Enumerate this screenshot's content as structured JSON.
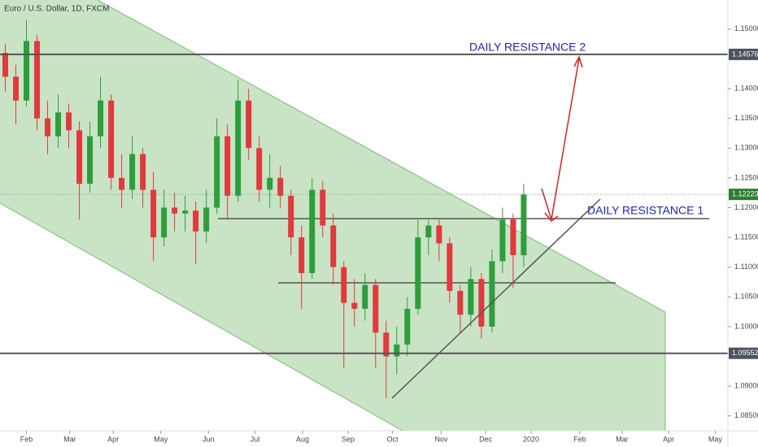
{
  "chart_data": {
    "type": "candlestick",
    "title": "Euro / U.S. Dollar, 1D, FXCM",
    "up_color": "#2e9d3c",
    "down_color": "#e0393e",
    "open": [
      1.146,
      1.142,
      1.138,
      1.148,
      1.135,
      1.132,
      1.136,
      1.133,
      1.124,
      1.132,
      1.138,
      1.125,
      1.123,
      1.129,
      1.123,
      1.115,
      1.12,
      1.119,
      1.1195,
      1.116,
      1.12,
      1.132,
      1.122,
      1.138,
      1.13,
      1.123,
      1.125,
      1.122,
      1.115,
      1.109,
      1.123,
      1.117,
      1.11,
      1.104,
      1.103,
      1.107,
      1.099,
      1.095,
      1.097,
      1.103,
      1.115,
      1.117,
      1.114,
      1.106,
      1.102,
      1.108,
      1.1,
      1.111,
      1.118,
      1.112
    ],
    "high": [
      1.1475,
      1.144,
      1.1515,
      1.149,
      1.138,
      1.139,
      1.1375,
      1.1345,
      1.1345,
      1.142,
      1.139,
      1.129,
      1.132,
      1.13,
      1.126,
      1.123,
      1.1225,
      1.122,
      1.121,
      1.123,
      1.135,
      1.134,
      1.1415,
      1.14,
      1.132,
      1.129,
      1.127,
      1.123,
      1.117,
      1.125,
      1.1245,
      1.119,
      1.111,
      1.108,
      1.109,
      1.108,
      1.101,
      1.1,
      1.105,
      1.118,
      1.118,
      1.118,
      1.115,
      1.107,
      1.11,
      1.109,
      1.113,
      1.12,
      1.119,
      1.124
    ],
    "low": [
      1.1395,
      1.134,
      1.137,
      1.133,
      1.129,
      1.13,
      1.13,
      1.118,
      1.1225,
      1.13,
      1.123,
      1.12,
      1.1215,
      1.12,
      1.111,
      1.1135,
      1.116,
      1.116,
      1.1105,
      1.114,
      1.119,
      1.118,
      1.121,
      1.128,
      1.121,
      1.12,
      1.12,
      1.112,
      1.103,
      1.108,
      1.115,
      1.107,
      1.093,
      1.1,
      1.101,
      1.093,
      1.088,
      1.092,
      1.095,
      1.102,
      1.112,
      1.111,
      1.104,
      1.099,
      1.1,
      1.098,
      1.099,
      1.109,
      1.1065,
      1.11
    ],
    "close": [
      1.142,
      1.138,
      1.148,
      1.135,
      1.132,
      1.136,
      1.133,
      1.124,
      1.132,
      1.138,
      1.125,
      1.123,
      1.129,
      1.123,
      1.115,
      1.12,
      1.119,
      1.1195,
      1.116,
      1.12,
      1.132,
      1.122,
      1.138,
      1.13,
      1.123,
      1.125,
      1.122,
      1.115,
      1.109,
      1.123,
      1.117,
      1.11,
      1.104,
      1.103,
      1.107,
      1.099,
      1.095,
      1.097,
      1.103,
      1.115,
      1.117,
      1.114,
      1.106,
      1.102,
      1.108,
      1.1,
      1.111,
      1.118,
      1.112,
      1.1222
    ],
    "xlim": [
      -0.5,
      68.3
    ],
    "xticks": [
      {
        "value": 2.0,
        "label": "Feb"
      },
      {
        "value": 6.1,
        "label": "Mar"
      },
      {
        "value": 10.2,
        "label": "Apr"
      },
      {
        "value": 14.7,
        "label": "May"
      },
      {
        "value": 19.2,
        "label": "Jun"
      },
      {
        "value": 23.6,
        "label": "Jul"
      },
      {
        "value": 28.1,
        "label": "Aug"
      },
      {
        "value": 32.4,
        "label": "Sep"
      },
      {
        "value": 36.6,
        "label": "Oct"
      },
      {
        "value": 41.2,
        "label": "Nov"
      },
      {
        "value": 45.4,
        "label": "Dec"
      },
      {
        "value": 49.7,
        "label": "2020"
      },
      {
        "value": 54.3,
        "label": "Feb"
      },
      {
        "value": 58.3,
        "label": "Mar"
      },
      {
        "value": 62.7,
        "label": "Apr"
      },
      {
        "value": 67.1,
        "label": "May"
      }
    ],
    "ylim": [
      1.0825,
      1.1549
    ],
    "yticks": [
      {
        "value": 1.15,
        "label": "1.15000"
      },
      {
        "value": 1.14,
        "label": "1.14000"
      },
      {
        "value": 1.135,
        "label": "1.13500"
      },
      {
        "value": 1.13,
        "label": "1.13000"
      },
      {
        "value": 1.125,
        "label": "1.12500"
      },
      {
        "value": 1.12,
        "label": "1.12000"
      },
      {
        "value": 1.115,
        "label": "1.11500"
      },
      {
        "value": 1.11,
        "label": "1.11000"
      },
      {
        "value": 1.105,
        "label": "1.10500"
      },
      {
        "value": 1.1,
        "label": "1.10000"
      },
      {
        "value": 1.09,
        "label": "1.09000"
      },
      {
        "value": 1.085,
        "label": "1.08500"
      }
    ],
    "levels": [
      1.14576,
      1.09552
    ],
    "last_price": 1.12223,
    "annotations": [
      "DAILY RESISTANCE 2",
      "DAILY RESISTANCE 1"
    ]
  }
}
